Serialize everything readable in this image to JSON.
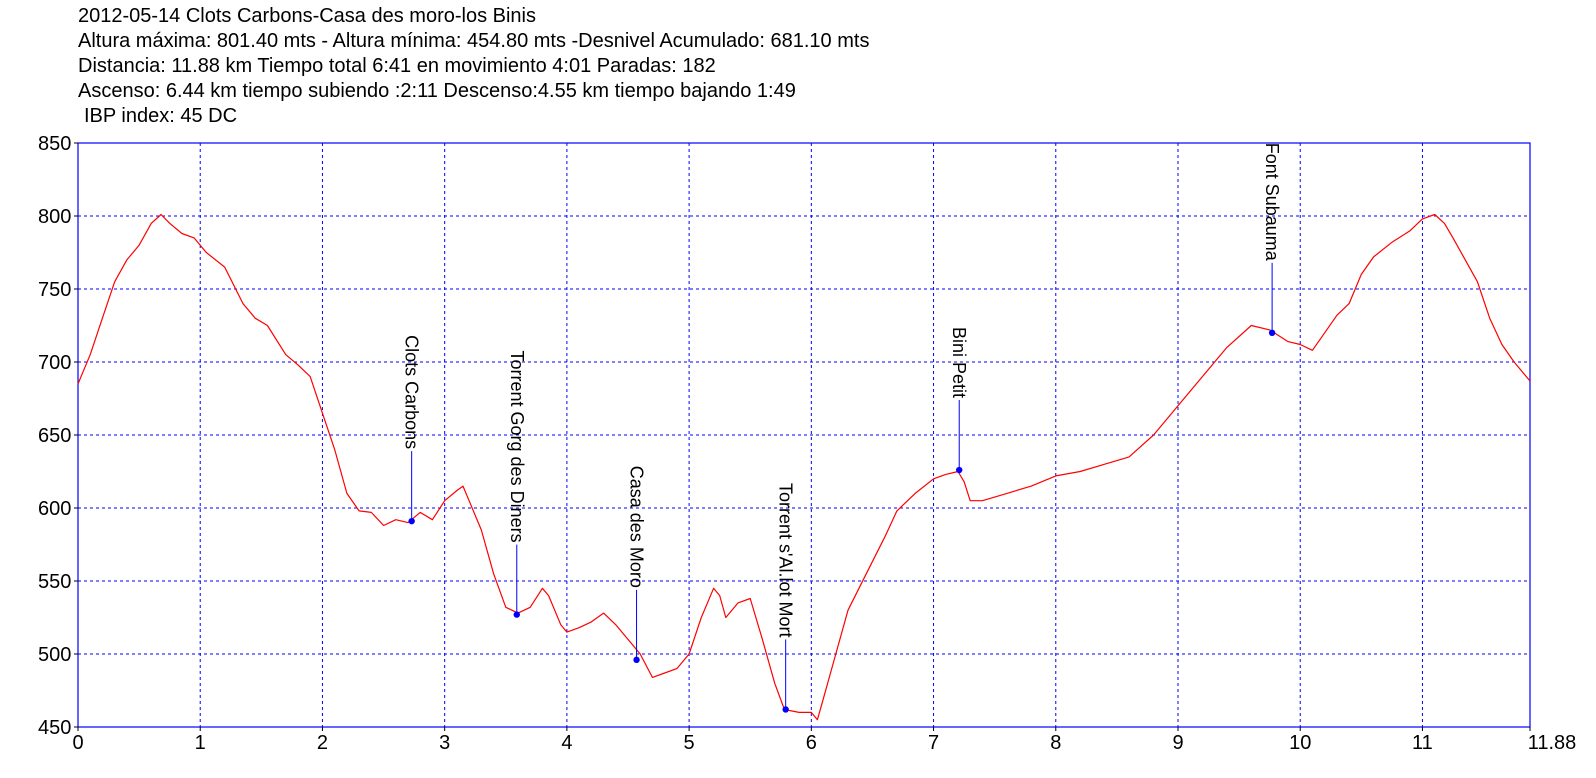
{
  "header": {
    "line1": "2012-05-14 Clots Carbons-Casa des moro-los Binis",
    "line2": "Altura máxima: 801.40 mts - Altura mínima: 454.80 mts -Desnivel Acumulado: 681.10 mts",
    "line3": "Distancia: 11.88 km  Tiempo total 6:41  en movimiento 4:01 Paradas: 182",
    "line4": "Ascenso: 6.44 km  tiempo subiendo :2:11  Descenso:4.55 km tiempo bajando 1:49",
    "line5": "IBP index: 45 DC"
  },
  "chart_data": {
    "type": "line",
    "title": "2012-05-14 Clots Carbons-Casa des moro-los Binis",
    "xlabel": "",
    "ylabel": "",
    "xlim": [
      0,
      11.88
    ],
    "ylim": [
      450,
      850
    ],
    "x_ticks": [
      "0",
      "1",
      "2",
      "3",
      "4",
      "5",
      "6",
      "7",
      "8",
      "9",
      "10",
      "11",
      "11.88"
    ],
    "y_ticks": [
      "450",
      "500",
      "550",
      "600",
      "650",
      "700",
      "750",
      "800",
      "850"
    ],
    "grid": true,
    "colors": {
      "line": "#ff0000",
      "frame": "#0000ff",
      "grid": "#0000ff",
      "marker": "#0000ff",
      "text": "#000000"
    },
    "series": [
      {
        "x": [
          0,
          0.1,
          0.2,
          0.3,
          0.4,
          0.5,
          0.6,
          0.68,
          0.75,
          0.85,
          0.95,
          1.05,
          1.2,
          1.35,
          1.45,
          1.55,
          1.7,
          1.8,
          1.9,
          2.0,
          2.1,
          2.2,
          2.3,
          2.4,
          2.5,
          2.6,
          2.7,
          2.8,
          2.9,
          3.0,
          3.1,
          3.15,
          3.2,
          3.3,
          3.4,
          3.5,
          3.6,
          3.7,
          3.8,
          3.85,
          3.95,
          4.0,
          4.1,
          4.2,
          4.3,
          4.4,
          4.5,
          4.6,
          4.7,
          4.8,
          4.9,
          5.0,
          5.1,
          5.2,
          5.25,
          5.3,
          5.35,
          5.4,
          5.5,
          5.6,
          5.7,
          5.78,
          5.9,
          6.0,
          6.05,
          6.1,
          6.2,
          6.3,
          6.45,
          6.6,
          6.7,
          6.85,
          7.0,
          7.1,
          7.2,
          7.25,
          7.3,
          7.4,
          7.6,
          7.8,
          8.0,
          8.2,
          8.4,
          8.6,
          8.8,
          9.0,
          9.2,
          9.4,
          9.6,
          9.75,
          9.9,
          10.0,
          10.1,
          10.2,
          10.3,
          10.4,
          10.5,
          10.6,
          10.75,
          10.9,
          11.0,
          11.1,
          11.18,
          11.25,
          11.35,
          11.45,
          11.55,
          11.65,
          11.75,
          11.88
        ],
        "y": [
          685,
          705,
          730,
          755,
          770,
          780,
          795,
          801,
          795,
          788,
          785,
          775,
          765,
          740,
          730,
          725,
          705,
          698,
          690,
          665,
          640,
          610,
          598,
          597,
          588,
          592,
          590,
          597,
          592,
          605,
          612,
          615,
          605,
          585,
          555,
          532,
          528,
          532,
          545,
          540,
          520,
          515,
          518,
          522,
          528,
          520,
          510,
          500,
          484,
          487,
          490,
          500,
          525,
          545,
          540,
          525,
          530,
          535,
          538,
          510,
          480,
          462,
          460,
          460,
          455,
          470,
          500,
          530,
          555,
          580,
          598,
          610,
          620,
          623,
          625,
          618,
          605,
          605,
          610,
          615,
          622,
          625,
          630,
          635,
          650,
          670,
          690,
          710,
          725,
          722,
          714,
          712,
          708,
          720,
          732,
          740,
          760,
          772,
          782,
          790,
          798,
          801,
          795,
          785,
          770,
          755,
          730,
          712,
          700,
          687
        ]
      }
    ],
    "waypoints": [
      {
        "name": "Clots Carbons",
        "x": 2.73,
        "y": 591
      },
      {
        "name": "Torrent Gorg des Diners",
        "x": 3.59,
        "y": 527
      },
      {
        "name": "Casa des Moro",
        "x": 4.57,
        "y": 496
      },
      {
        "name": "Torrent s'Al.lot Mort",
        "x": 5.79,
        "y": 462
      },
      {
        "name": "Bini Petit",
        "x": 7.21,
        "y": 626
      },
      {
        "name": "Font Subauma",
        "x": 9.77,
        "y": 720
      }
    ]
  }
}
